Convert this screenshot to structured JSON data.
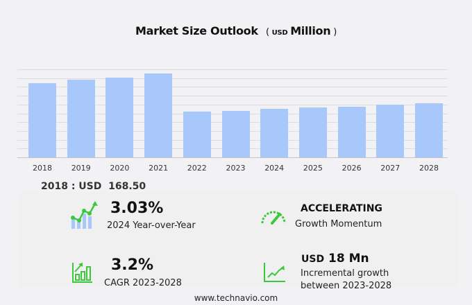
{
  "header": {
    "title": "Market Size Outlook",
    "unit_open": "(",
    "unit_currency": "USD",
    "unit_scale": "Million",
    "unit_close": ")"
  },
  "chart_data": {
    "type": "bar",
    "title": "Market Size Outlook (USD Million)",
    "xlabel": "",
    "ylabel": "USD Million",
    "categories": [
      "2018",
      "2019",
      "2020",
      "2021",
      "2022",
      "2023",
      "2024",
      "2025",
      "2026",
      "2027",
      "2028"
    ],
    "values": [
      168.5,
      175.5,
      180.2,
      189.6,
      102.7,
      105.8,
      109.0,
      112.2,
      115.2,
      119.1,
      123.0
    ],
    "ylim": [
      0,
      200
    ],
    "grid": true,
    "bar_color": "#a8c8fb"
  },
  "first_value": {
    "label": "2018 : USD",
    "value": "168.50"
  },
  "kpis": {
    "yoy": {
      "value": "3.03%",
      "label": "2024 Year-over-Year",
      "icon": "bar-line-growth-icon"
    },
    "momentum": {
      "value": "ACCELERATING",
      "label": "Growth Momentum",
      "icon": "speedometer-icon"
    },
    "cagr": {
      "value": "3.2%",
      "label": "CAGR 2023-2028",
      "icon": "bar-chart-arrow-icon"
    },
    "incremental": {
      "currency": "USD",
      "value": "18 Mn",
      "label_line1": "Incremental growth",
      "label_line2": "between 2023-2028",
      "icon": "trend-line-icon"
    }
  },
  "colors": {
    "accent_green": "#3cc83c",
    "bar_blue": "#a8c8fb"
  },
  "footer": {
    "site": "www.technavio.com"
  }
}
